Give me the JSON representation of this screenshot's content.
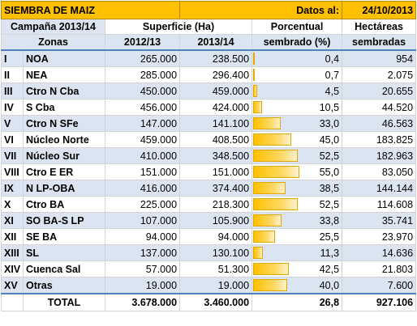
{
  "title": "SIEMBRA DE MAIZ",
  "date_label": "Datos al:",
  "date_value": "24/10/2013",
  "campaign": "Campaña 2013/14",
  "superficie_header": "Superficie (Ha)",
  "pct_header_1": "Porcentual",
  "pct_header_2": "sembrado (%)",
  "ha_header_1": "Hectáreas",
  "ha_header_2": "sembradas",
  "zones_header": "Zonas",
  "year1": "2012/13",
  "year2": "2013/14",
  "bar_max": 100,
  "rows": [
    {
      "roman": "I",
      "zone": "NOA",
      "s2012": "265.000",
      "s2013": "238.500",
      "pct": "0,4",
      "pct_value": 0.4,
      "ha": "954"
    },
    {
      "roman": "II",
      "zone": "NEA",
      "s2012": "285.000",
      "s2013": "296.400",
      "pct": "0,7",
      "pct_value": 0.7,
      "ha": "2.075"
    },
    {
      "roman": "III",
      "zone": "Ctro N Cba",
      "s2012": "450.000",
      "s2013": "459.000",
      "pct": "4,5",
      "pct_value": 4.5,
      "ha": "20.655"
    },
    {
      "roman": "IV",
      "zone": "S Cba",
      "s2012": "456.000",
      "s2013": "424.000",
      "pct": "10,5",
      "pct_value": 10.5,
      "ha": "44.520"
    },
    {
      "roman": "V",
      "zone": "Ctro N SFe",
      "s2012": "147.000",
      "s2013": "141.100",
      "pct": "33,0",
      "pct_value": 33.0,
      "ha": "46.563"
    },
    {
      "roman": "VI",
      "zone": "Núcleo Norte",
      "s2012": "459.000",
      "s2013": "408.500",
      "pct": "45,0",
      "pct_value": 45.0,
      "ha": "183.825"
    },
    {
      "roman": "VII",
      "zone": "Núcleo Sur",
      "s2012": "410.000",
      "s2013": "348.500",
      "pct": "52,5",
      "pct_value": 52.5,
      "ha": "182.963"
    },
    {
      "roman": "VIII",
      "zone": "Ctro E ER",
      "s2012": "151.000",
      "s2013": "151.000",
      "pct": "55,0",
      "pct_value": 55.0,
      "ha": "83.050"
    },
    {
      "roman": "IX",
      "zone": "N LP-OBA",
      "s2012": "416.000",
      "s2013": "374.400",
      "pct": "38,5",
      "pct_value": 38.5,
      "ha": "144.144"
    },
    {
      "roman": "X",
      "zone": "Ctro BA",
      "s2012": "225.000",
      "s2013": "218.300",
      "pct": "52,5",
      "pct_value": 52.5,
      "ha": "114.608"
    },
    {
      "roman": "XI",
      "zone": "SO BA-S LP",
      "s2012": "107.000",
      "s2013": "105.900",
      "pct": "33,8",
      "pct_value": 33.8,
      "ha": "35.741"
    },
    {
      "roman": "XII",
      "zone": "SE BA",
      "s2012": "94.000",
      "s2013": "94.000",
      "pct": "25,5",
      "pct_value": 25.5,
      "ha": "23.970"
    },
    {
      "roman": "XIII",
      "zone": "SL",
      "s2012": "137.000",
      "s2013": "130.100",
      "pct": "11,3",
      "pct_value": 11.3,
      "ha": "14.636"
    },
    {
      "roman": "XIV",
      "zone": "Cuenca Sal",
      "s2012": "57.000",
      "s2013": "51.300",
      "pct": "42,5",
      "pct_value": 42.5,
      "ha": "21.803"
    },
    {
      "roman": "XV",
      "zone": "Otras",
      "s2012": "19.000",
      "s2013": "19.000",
      "pct": "40,0",
      "pct_value": 40.0,
      "ha": "7.600"
    }
  ],
  "total": {
    "label": "TOTAL",
    "s2012": "3.678.000",
    "s2013": "3.460.000",
    "pct": "26,8",
    "ha": "927.106"
  },
  "colors": {
    "title_bg": "#ffc000",
    "band": "#dbe5f1",
    "bar": "#ffc000",
    "rule": "#4f81bd"
  }
}
